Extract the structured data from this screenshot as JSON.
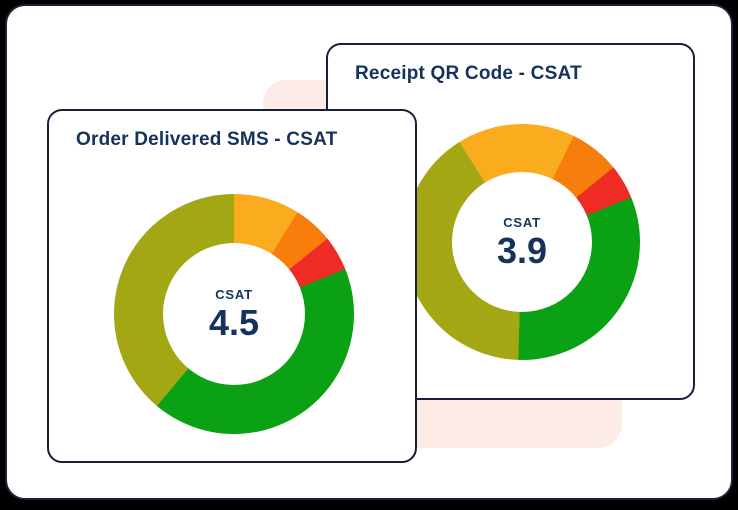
{
  "colors": {
    "canvas_bg": "#000000",
    "surface_bg": "#ffffff",
    "accent_shape": "#fcebe6",
    "card_border": "#182038",
    "text_navy": "#15325b"
  },
  "cards": [
    {
      "title": "Order Delivered SMS - CSAT"
    },
    {
      "title": "Receipt QR Code - CSAT"
    }
  ],
  "chart_data": [
    {
      "type": "donut",
      "title": "Order Delivered SMS - CSAT",
      "center_label": "CSAT",
      "center_value": "4.5",
      "start_angle_deg": 0,
      "legend": "none",
      "segments": [
        {
          "name": "amber",
          "color": "#fbab1e",
          "percent": 8.9
        },
        {
          "name": "orange",
          "color": "#f87e0c",
          "percent": 5.3
        },
        {
          "name": "red",
          "color": "#ee2b25",
          "percent": 4.7
        },
        {
          "name": "green",
          "color": "#0ba115",
          "percent": 42.2
        },
        {
          "name": "olive",
          "color": "#a3a714",
          "percent": 38.9
        }
      ]
    },
    {
      "type": "donut",
      "title": "Receipt QR Code - CSAT",
      "center_label": "CSAT",
      "center_value": "3.9",
      "start_angle_deg": -32,
      "legend": "none",
      "segments": [
        {
          "name": "amber",
          "color": "#fbab1e",
          "percent": 16.1
        },
        {
          "name": "orange",
          "color": "#f87e0c",
          "percent": 6.9
        },
        {
          "name": "red",
          "color": "#ee2b25",
          "percent": 4.7
        },
        {
          "name": "green",
          "color": "#0ba115",
          "percent": 31.7
        },
        {
          "name": "olive",
          "color": "#a3a714",
          "percent": 40.6
        }
      ]
    }
  ]
}
